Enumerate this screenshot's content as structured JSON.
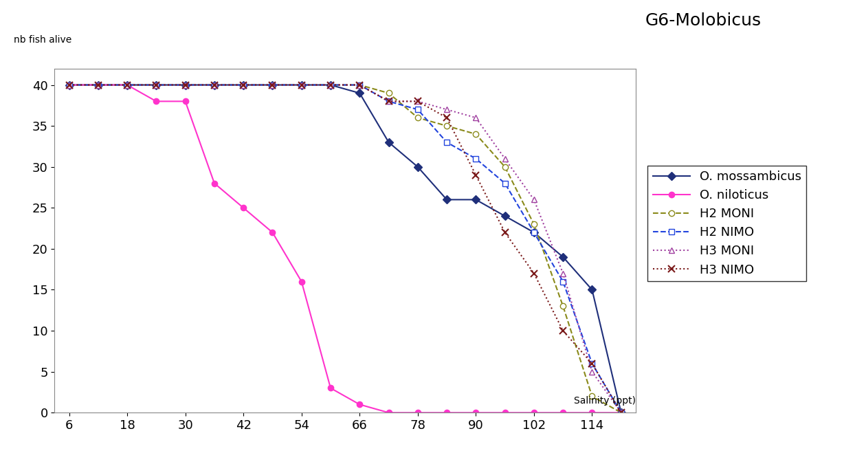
{
  "chart_data": {
    "type": "line",
    "title": "G6-Molobicus",
    "x_label": "Salinity (ppt)",
    "y_label": "nb fish alive",
    "x": [
      6,
      12,
      18,
      24,
      30,
      36,
      42,
      48,
      54,
      60,
      66,
      72,
      78,
      84,
      90,
      96,
      102,
      108,
      114,
      120
    ],
    "xlim": [
      3,
      123
    ],
    "xticks": [
      6,
      18,
      30,
      42,
      54,
      66,
      78,
      90,
      102,
      114
    ],
    "ylim": [
      0,
      42
    ],
    "yticks": [
      0,
      5,
      10,
      15,
      20,
      25,
      30,
      35,
      40
    ],
    "grid": false,
    "legend": "right",
    "series": [
      {
        "name": "O. mossambicus",
        "color": "#1f2f7a",
        "marker": "diamond",
        "line_style": "solid",
        "values": [
          40,
          40,
          40,
          40,
          40,
          40,
          40,
          40,
          40,
          40,
          39,
          33,
          30,
          26,
          26,
          24,
          22,
          19,
          15,
          0
        ]
      },
      {
        "name": "O. niloticus",
        "color": "#ff33cc",
        "marker": "circle",
        "line_style": "solid",
        "values": [
          40,
          40,
          40,
          38,
          38,
          28,
          25,
          22,
          16,
          3,
          1,
          0,
          0,
          0,
          0,
          0,
          0,
          0,
          0,
          0
        ]
      },
      {
        "name": "H2 MONI",
        "color": "#8a8a1a",
        "marker": "open_circle",
        "line_style": "dashed",
        "values": [
          40,
          40,
          40,
          40,
          40,
          40,
          40,
          40,
          40,
          40,
          40,
          39,
          36,
          35,
          34,
          30,
          23,
          13,
          2,
          0
        ]
      },
      {
        "name": "H2 NIMO",
        "color": "#2244dd",
        "marker": "open_square",
        "line_style": "dashed",
        "values": [
          40,
          40,
          40,
          40,
          40,
          40,
          40,
          40,
          40,
          40,
          40,
          38,
          37,
          33,
          31,
          28,
          22,
          16,
          6,
          0
        ]
      },
      {
        "name": "H3 MONI",
        "color": "#a040a0",
        "marker": "open_triangle",
        "line_style": "dotted",
        "values": [
          40,
          40,
          40,
          40,
          40,
          40,
          40,
          40,
          40,
          40,
          40,
          38,
          38,
          37,
          36,
          31,
          26,
          17,
          5,
          0
        ]
      },
      {
        "name": "H3 NIMO",
        "color": "#7a1a1a",
        "marker": "star",
        "line_style": "dotted",
        "values": [
          40,
          40,
          40,
          40,
          40,
          40,
          40,
          40,
          40,
          40,
          40,
          38,
          38,
          36,
          29,
          22,
          17,
          10,
          6,
          0
        ]
      }
    ]
  }
}
